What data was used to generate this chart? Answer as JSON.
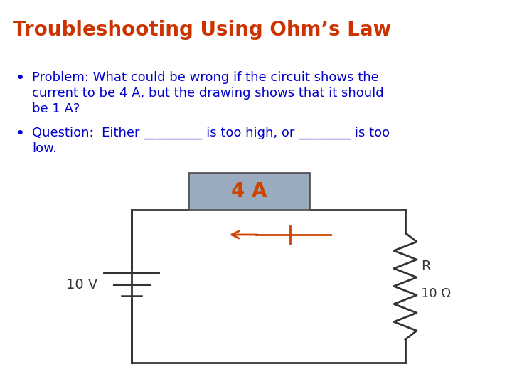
{
  "title": "Troubleshooting Using Ohm’s Law",
  "title_color": "#CC3300",
  "bullet1_line1": "Problem: What could be wrong if the circuit shows the",
  "bullet1_line2": "current to be 4 A, but the drawing shows that it should",
  "bullet1_line3": "be 1 A?",
  "bullet2_line1": "Question:  Either _________ is too high, or ________ is too",
  "bullet2_line2": "low.",
  "text_color": "#0000CC",
  "ammeter_label": "4 A",
  "ammeter_text_color": "#CC4400",
  "ammeter_bg": "#9aabbf",
  "ammeter_border": "#555555",
  "voltage_label": "10 V",
  "resistor_label": "R",
  "resistor_value": "10 Ω",
  "circuit_color": "#333333",
  "arrow_color": "#CC4400",
  "background_color": "#ffffff",
  "title_fontsize": 20,
  "text_fontsize": 13,
  "bullet_fontsize": 16
}
